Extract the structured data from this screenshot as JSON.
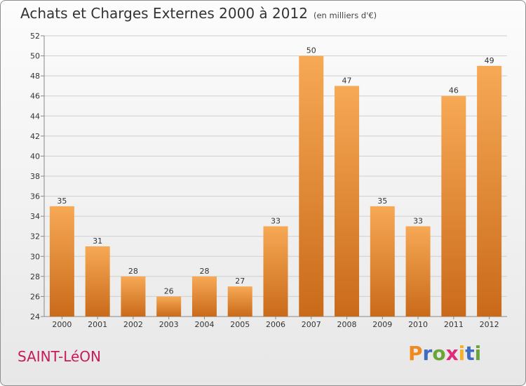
{
  "header": {
    "title": "Achats et Charges Externes 2000 à 2012",
    "unit": "(en milliers d'€)"
  },
  "footer": {
    "commune": "SAINT-LéON",
    "logo_text": "Proxiti"
  },
  "colors": {
    "bar_light": "#f7a955",
    "bar_dark": "#c96a1a",
    "commune": "#c61b5a",
    "logo_letters": [
      "#f08a1f",
      "#3f6cc0",
      "#6aa53a",
      "#e02b7a",
      "#f3b12a",
      "#3f6cc0",
      "#6aa53a"
    ]
  },
  "chart_data": {
    "type": "bar",
    "title": "Achats et Charges Externes 2000 à 2012",
    "subtitle": "(en milliers d'€)",
    "categories": [
      "2000",
      "2001",
      "2002",
      "2003",
      "2004",
      "2005",
      "2006",
      "2007",
      "2008",
      "2009",
      "2010",
      "2011",
      "2012"
    ],
    "values": [
      35,
      31,
      28,
      26,
      28,
      27,
      33,
      50,
      47,
      35,
      33,
      46,
      49
    ],
    "ylim": [
      24,
      52
    ],
    "yticks": [
      24,
      26,
      28,
      30,
      32,
      34,
      36,
      38,
      40,
      42,
      44,
      46,
      48,
      50,
      52
    ],
    "grid": true,
    "data_labels": true
  }
}
